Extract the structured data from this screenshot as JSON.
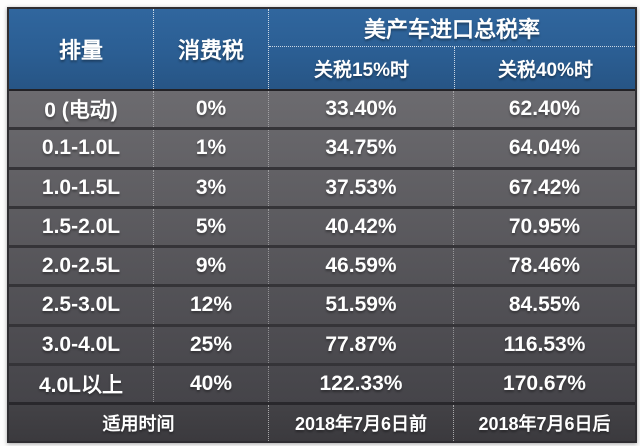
{
  "table": {
    "header": {
      "col_displacement": "排量",
      "col_consumption_tax": "消费税",
      "col_total_rate_group": "美产车进口总税率",
      "col_tariff_15": "关税15%时",
      "col_tariff_40": "关税40%时"
    },
    "rows": [
      {
        "displacement": "0 (电动)",
        "consumption_tax": "0%",
        "rate_15": "33.40%",
        "rate_40": "62.40%"
      },
      {
        "displacement": "0.1-1.0L",
        "consumption_tax": "1%",
        "rate_15": "34.75%",
        "rate_40": "64.04%"
      },
      {
        "displacement": "1.0-1.5L",
        "consumption_tax": "3%",
        "rate_15": "37.53%",
        "rate_40": "67.42%"
      },
      {
        "displacement": "1.5-2.0L",
        "consumption_tax": "5%",
        "rate_15": "40.42%",
        "rate_40": "70.95%"
      },
      {
        "displacement": "2.0-2.5L",
        "consumption_tax": "9%",
        "rate_15": "46.59%",
        "rate_40": "78.46%"
      },
      {
        "displacement": "2.5-3.0L",
        "consumption_tax": "12%",
        "rate_15": "51.59%",
        "rate_40": "84.55%"
      },
      {
        "displacement": "3.0-4.0L",
        "consumption_tax": "25%",
        "rate_15": "77.87%",
        "rate_40": "116.53%"
      },
      {
        "displacement": "4.0L以上",
        "consumption_tax": "40%",
        "rate_15": "122.33%",
        "rate_40": "170.67%"
      }
    ],
    "footer": {
      "label": "适用时间",
      "before": "2018年7月6日前",
      "after": "2018年7月6日后"
    },
    "colors": {
      "header_blue": "#2b5e93",
      "row_gray_top": "#6c6b6f",
      "row_gray_bottom": "#454449",
      "footer_dark": "#3e3d41",
      "text": "#ffffff"
    }
  },
  "chart_data": {
    "type": "table",
    "title": "美产车进口总税率",
    "columns": [
      "排量",
      "消费税",
      "关税15%时",
      "关税40%时"
    ],
    "rows": [
      [
        "0 (电动)",
        "0%",
        "33.40%",
        "62.40%"
      ],
      [
        "0.1-1.0L",
        "1%",
        "34.75%",
        "64.04%"
      ],
      [
        "1.0-1.5L",
        "3%",
        "37.53%",
        "67.42%"
      ],
      [
        "1.5-2.0L",
        "5%",
        "40.42%",
        "70.95%"
      ],
      [
        "2.0-2.5L",
        "9%",
        "46.59%",
        "78.46%"
      ],
      [
        "2.5-3.0L",
        "12%",
        "51.59%",
        "84.55%"
      ],
      [
        "3.0-4.0L",
        "25%",
        "77.87%",
        "116.53%"
      ],
      [
        "4.0L以上",
        "40%",
        "122.33%",
        "170.67%"
      ]
    ],
    "footer_row": [
      "适用时间",
      "2018年7月6日前",
      "2018年7月6日后"
    ],
    "notes": "consumption-tax and total import tax rates for US-made cars by engine displacement, before/after 2018-07-06 tariff change"
  }
}
